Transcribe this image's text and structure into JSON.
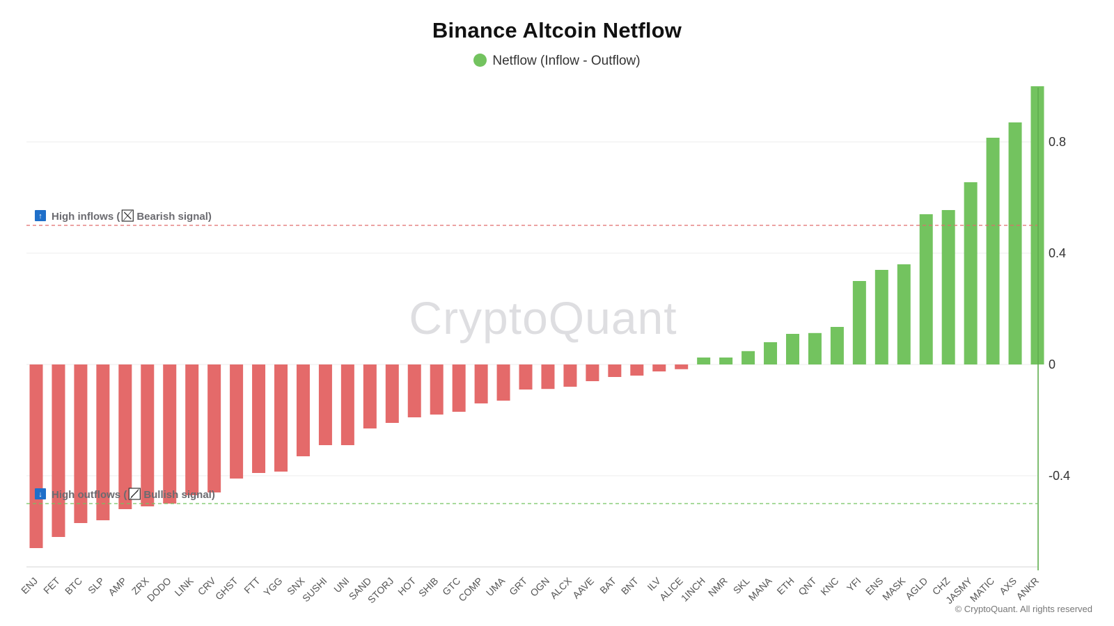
{
  "title": "Binance Altcoin Netflow",
  "legend": {
    "label": "Netflow (Inflow - Outflow)",
    "color": "#73c35f"
  },
  "watermark": "CryptoQuant",
  "copyright": "© CryptoQuant. All rights reserved",
  "thresholds": {
    "inflow": {
      "value": 0.5,
      "color": "#e06b6b",
      "label_a": "High inflows (",
      "label_b": "Bearish signal)",
      "icon_a": "arrow-up-icon",
      "icon_b": "chart-down-icon"
    },
    "outflow": {
      "value": -0.5,
      "color": "#73c35f",
      "label_a": "High outflows (",
      "label_b": "Bullish signal)",
      "icon_a": "arrow-down-icon",
      "icon_b": "chart-up-icon"
    }
  },
  "colors": {
    "positive": "#73c35f",
    "negative": "#e46a6a",
    "axis": "#5fae4e",
    "grid": "#ececec",
    "icon_bg": "#1f6fc9"
  },
  "chart_data": {
    "type": "bar",
    "title": "Binance Altcoin Netflow",
    "xlabel": "",
    "ylabel": "",
    "ylim": [
      -0.74,
      1.0
    ],
    "yticks": [
      -0.4,
      0,
      0.4,
      0.8
    ],
    "categories": [
      "ENJ",
      "FET",
      "BTC",
      "SLP",
      "AMP",
      "ZRX",
      "DODO",
      "LINK",
      "CRV",
      "GHST",
      "FTT",
      "YGG",
      "SNX",
      "SUSHI",
      "UNI",
      "SAND",
      "STORJ",
      "HOT",
      "SHIB",
      "GTC",
      "COMP",
      "UMA",
      "GRT",
      "OGN",
      "ALCX",
      "AAVE",
      "BAT",
      "BNT",
      "ILV",
      "ALICE",
      "1INCH",
      "NMR",
      "SKL",
      "MANA",
      "ETH",
      "QNT",
      "KNC",
      "YFI",
      "ENS",
      "MASK",
      "AGLD",
      "CHZ",
      "JASMY",
      "MATIC",
      "AXS",
      "ANKR"
    ],
    "series": [
      {
        "name": "Netflow (Inflow - Outflow)",
        "values": [
          -0.66,
          -0.62,
          -0.57,
          -0.56,
          -0.52,
          -0.51,
          -0.5,
          -0.47,
          -0.46,
          -0.41,
          -0.39,
          -0.385,
          -0.33,
          -0.29,
          -0.29,
          -0.23,
          -0.21,
          -0.19,
          -0.18,
          -0.17,
          -0.14,
          -0.13,
          -0.09,
          -0.088,
          -0.08,
          -0.06,
          -0.045,
          -0.04,
          -0.025,
          -0.017,
          0.025,
          0.025,
          0.048,
          0.08,
          0.11,
          0.113,
          0.135,
          0.3,
          0.34,
          0.36,
          0.54,
          0.555,
          0.655,
          0.815,
          0.87,
          1.0
        ]
      }
    ]
  }
}
